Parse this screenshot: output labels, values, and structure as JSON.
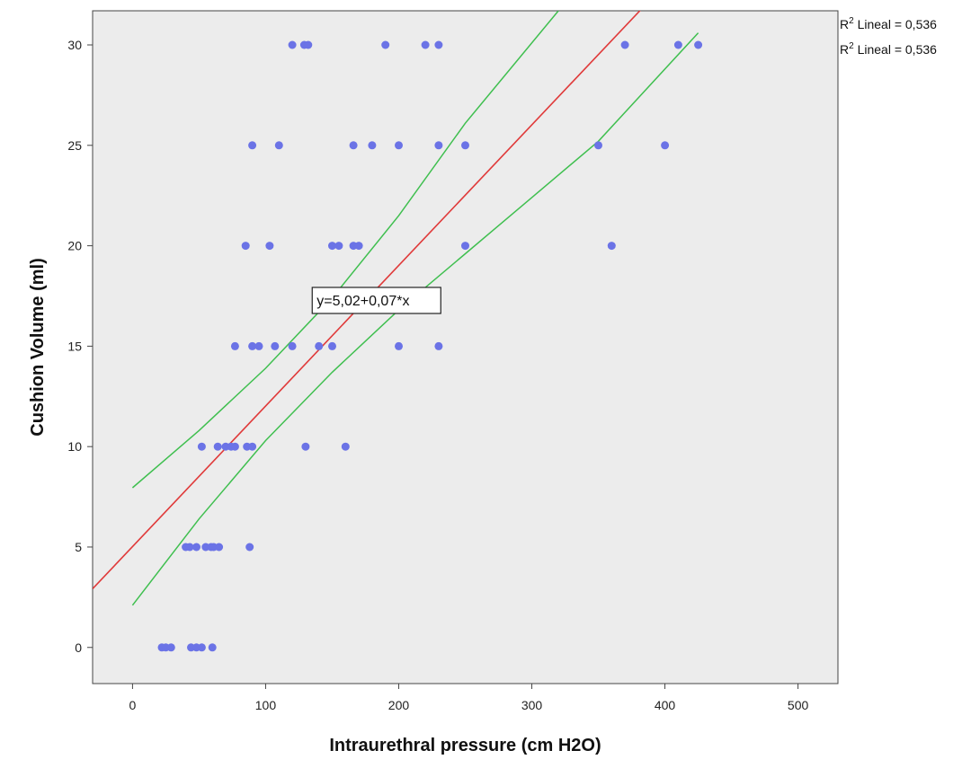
{
  "chart_data": {
    "type": "scatter",
    "xlabel": "Intraurethral pressure (cm H2O)",
    "ylabel": "Cushion Volume (ml)",
    "xlim": [
      -30,
      530
    ],
    "ylim": [
      -1.8,
      31.7
    ],
    "xticks": [
      0,
      100,
      200,
      300,
      400,
      500
    ],
    "yticks": [
      0,
      5,
      10,
      15,
      20,
      25,
      30
    ],
    "grid": false,
    "background_color": "#ececec",
    "point_color": "#6b73e6",
    "points": [
      {
        "x": 22,
        "y": 0
      },
      {
        "x": 25,
        "y": 0
      },
      {
        "x": 29,
        "y": 0
      },
      {
        "x": 44,
        "y": 0
      },
      {
        "x": 48,
        "y": 0
      },
      {
        "x": 52,
        "y": 0
      },
      {
        "x": 60,
        "y": 0
      },
      {
        "x": 40,
        "y": 5
      },
      {
        "x": 43,
        "y": 5
      },
      {
        "x": 48,
        "y": 5
      },
      {
        "x": 55,
        "y": 5
      },
      {
        "x": 59,
        "y": 5
      },
      {
        "x": 61,
        "y": 5
      },
      {
        "x": 65,
        "y": 5
      },
      {
        "x": 88,
        "y": 5
      },
      {
        "x": 52,
        "y": 10
      },
      {
        "x": 64,
        "y": 10
      },
      {
        "x": 70,
        "y": 10
      },
      {
        "x": 74,
        "y": 10
      },
      {
        "x": 77,
        "y": 10
      },
      {
        "x": 86,
        "y": 10
      },
      {
        "x": 90,
        "y": 10
      },
      {
        "x": 130,
        "y": 10
      },
      {
        "x": 160,
        "y": 10
      },
      {
        "x": 77,
        "y": 15
      },
      {
        "x": 90,
        "y": 15
      },
      {
        "x": 95,
        "y": 15
      },
      {
        "x": 107,
        "y": 15
      },
      {
        "x": 120,
        "y": 15
      },
      {
        "x": 140,
        "y": 15
      },
      {
        "x": 150,
        "y": 15
      },
      {
        "x": 200,
        "y": 15
      },
      {
        "x": 230,
        "y": 15
      },
      {
        "x": 85,
        "y": 20
      },
      {
        "x": 103,
        "y": 20
      },
      {
        "x": 150,
        "y": 20
      },
      {
        "x": 155,
        "y": 20
      },
      {
        "x": 166,
        "y": 20
      },
      {
        "x": 170,
        "y": 20
      },
      {
        "x": 250,
        "y": 20
      },
      {
        "x": 360,
        "y": 20
      },
      {
        "x": 90,
        "y": 25
      },
      {
        "x": 110,
        "y": 25
      },
      {
        "x": 166,
        "y": 25
      },
      {
        "x": 180,
        "y": 25
      },
      {
        "x": 200,
        "y": 25
      },
      {
        "x": 230,
        "y": 25
      },
      {
        "x": 250,
        "y": 25
      },
      {
        "x": 350,
        "y": 25
      },
      {
        "x": 400,
        "y": 25
      },
      {
        "x": 120,
        "y": 30
      },
      {
        "x": 129,
        "y": 30
      },
      {
        "x": 132,
        "y": 30
      },
      {
        "x": 190,
        "y": 30
      },
      {
        "x": 220,
        "y": 30
      },
      {
        "x": 230,
        "y": 30
      },
      {
        "x": 370,
        "y": 30
      },
      {
        "x": 410,
        "y": 30
      },
      {
        "x": 425,
        "y": 30
      }
    ],
    "fit_line": {
      "intercept": 5.02,
      "slope": 0.07,
      "color": "#e03a3a"
    },
    "confidence_band": {
      "color": "#3fbf4f",
      "upper": [
        [
          0,
          7.95
        ],
        [
          50,
          10.8
        ],
        [
          100,
          13.9
        ],
        [
          150,
          17.4
        ],
        [
          200,
          21.5
        ],
        [
          250,
          26.1
        ],
        [
          320,
          31.7
        ]
      ],
      "lower": [
        [
          0,
          2.1
        ],
        [
          50,
          6.4
        ],
        [
          100,
          10.3
        ],
        [
          150,
          13.7
        ],
        [
          200,
          16.8
        ],
        [
          250,
          19.6
        ],
        [
          300,
          22.4
        ],
        [
          350,
          25.2
        ],
        [
          425,
          30.6
        ]
      ]
    },
    "equation_label": {
      "text": "y=5,02+0,07*x",
      "x": 135,
      "y": 17.3
    },
    "legend": {
      "position": "top-right",
      "entries": [
        {
          "prefix": "R",
          "sup": "2",
          "text": " Lineal = 0,536"
        },
        {
          "prefix": "R",
          "sup": "2",
          "text": " Lineal = 0,536"
        }
      ]
    }
  }
}
